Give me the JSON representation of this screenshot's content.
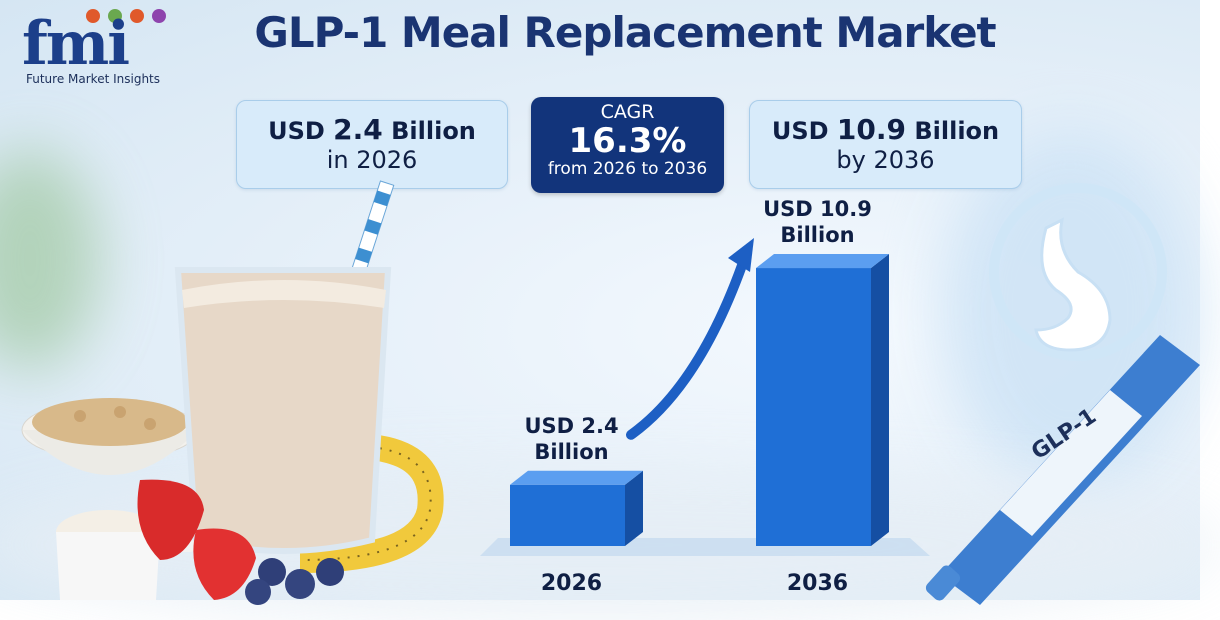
{
  "brand": {
    "logo_letters": "fmi",
    "logo_caption": "Future Market Insights",
    "dot_colors": [
      "#e0592b",
      "#6aa84f",
      "#e0592b",
      "#8e44ad"
    ]
  },
  "title": "GLP-1 Meal Replacement Market",
  "stats": {
    "left": {
      "value_prefix": "USD ",
      "value": "2.4",
      "value_suffix": " Billion",
      "sub": "in 2026"
    },
    "cagr": {
      "label": "CAGR",
      "value": "16.3%",
      "sub": "from 2026 to 2036"
    },
    "right": {
      "value_prefix": "USD ",
      "value": "10.9",
      "value_suffix": " Billion",
      "sub": "by 2036"
    }
  },
  "pen_label": "GLP-1",
  "colors": {
    "bar_front": "#1f6fd6",
    "bar_side": "#154fa3",
    "bar_top": "#5b9ef0",
    "navy": "#12347b",
    "text": "#0f1f44"
  },
  "chart_data": {
    "type": "bar",
    "categories": [
      "2026",
      "2036"
    ],
    "values": [
      2.4,
      10.9
    ],
    "data_labels": [
      [
        "USD 2.4",
        "Billion"
      ],
      [
        "USD 10.9",
        "Billion"
      ]
    ],
    "title": "",
    "xlabel": "",
    "ylabel": "",
    "ylim": [
      0,
      12
    ],
    "grid": false,
    "legend": "none",
    "trend_arrow": true
  }
}
